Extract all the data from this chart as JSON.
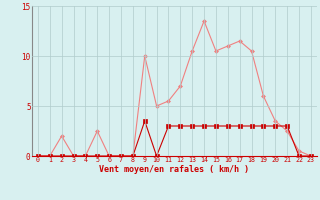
{
  "x": [
    0,
    1,
    2,
    3,
    4,
    5,
    6,
    7,
    8,
    9,
    10,
    11,
    12,
    13,
    14,
    15,
    16,
    17,
    18,
    19,
    20,
    21,
    22,
    23
  ],
  "y_rafales": [
    0,
    0,
    2,
    0,
    0,
    2.5,
    0,
    0,
    0,
    10,
    5,
    5.5,
    7,
    10.5,
    13.5,
    10.5,
    11,
    11.5,
    10.5,
    6,
    3.5,
    2.5,
    0.5,
    0
  ],
  "y_moyen": [
    0,
    0,
    0,
    0,
    0,
    0,
    0,
    0,
    0,
    3.5,
    0,
    3,
    3,
    3,
    3,
    3,
    3,
    3,
    3,
    3,
    3,
    3,
    0,
    0
  ],
  "xlabel": "Vent moyen/en rafales ( km/h )",
  "xlim_min": -0.5,
  "xlim_max": 23.5,
  "ylim": [
    0,
    15
  ],
  "yticks": [
    0,
    5,
    10,
    15
  ],
  "xticks": [
    0,
    1,
    2,
    3,
    4,
    5,
    6,
    7,
    8,
    9,
    10,
    11,
    12,
    13,
    14,
    15,
    16,
    17,
    18,
    19,
    20,
    21,
    22,
    23
  ],
  "color_rafales": "#f08080",
  "color_moyen": "#cc0000",
  "bg_color": "#d8f0f0",
  "grid_color": "#b0cccc",
  "tick_color": "#cc0000",
  "label_color": "#cc0000",
  "linewidth": 0.8,
  "markersize": 2.0
}
